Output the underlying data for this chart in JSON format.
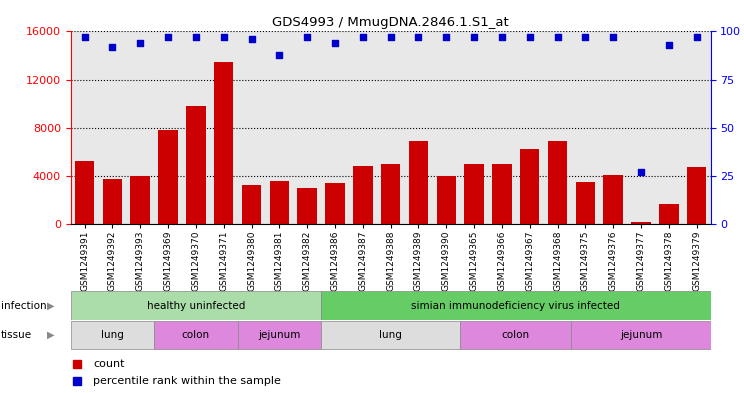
{
  "title": "GDS4993 / MmugDNA.2846.1.S1_at",
  "samples": [
    "GSM1249391",
    "GSM1249392",
    "GSM1249393",
    "GSM1249369",
    "GSM1249370",
    "GSM1249371",
    "GSM1249380",
    "GSM1249381",
    "GSM1249382",
    "GSM1249386",
    "GSM1249387",
    "GSM1249388",
    "GSM1249389",
    "GSM1249390",
    "GSM1249365",
    "GSM1249366",
    "GSM1249367",
    "GSM1249368",
    "GSM1249375",
    "GSM1249376",
    "GSM1249377",
    "GSM1249378",
    "GSM1249379"
  ],
  "counts": [
    5200,
    3700,
    3950,
    7800,
    9800,
    13500,
    3200,
    3600,
    3000,
    3400,
    4800,
    5000,
    6900,
    4000,
    5000,
    5000,
    6200,
    6900,
    3500,
    4100,
    200,
    1700,
    4700
  ],
  "percentiles": [
    97,
    92,
    94,
    97,
    97,
    97,
    96,
    88,
    97,
    94,
    97,
    97,
    97,
    97,
    97,
    97,
    97,
    97,
    97,
    97,
    27,
    93,
    97
  ],
  "bar_color": "#cc0000",
  "dot_color": "#0000cc",
  "ylim_left": [
    0,
    16000
  ],
  "ylim_right": [
    0,
    100
  ],
  "yticks_left": [
    0,
    4000,
    8000,
    12000,
    16000
  ],
  "yticks_right": [
    0,
    25,
    50,
    75,
    100
  ],
  "bg_color": "#e8e8e8",
  "infection_groups": [
    {
      "label": "healthy uninfected",
      "start": 0,
      "end": 9,
      "color": "#aaddaa"
    },
    {
      "label": "simian immunodeficiency virus infected",
      "start": 9,
      "end": 23,
      "color": "#66cc66"
    }
  ],
  "tissue_groups": [
    {
      "label": "lung",
      "start": 0,
      "end": 3,
      "color": "#dddddd"
    },
    {
      "label": "colon",
      "start": 3,
      "end": 6,
      "color": "#dd88dd"
    },
    {
      "label": "jejunum",
      "start": 6,
      "end": 9,
      "color": "#dd88dd"
    },
    {
      "label": "lung",
      "start": 9,
      "end": 14,
      "color": "#dddddd"
    },
    {
      "label": "colon",
      "start": 14,
      "end": 18,
      "color": "#dd88dd"
    },
    {
      "label": "jejunum",
      "start": 18,
      "end": 23,
      "color": "#dd88dd"
    }
  ]
}
